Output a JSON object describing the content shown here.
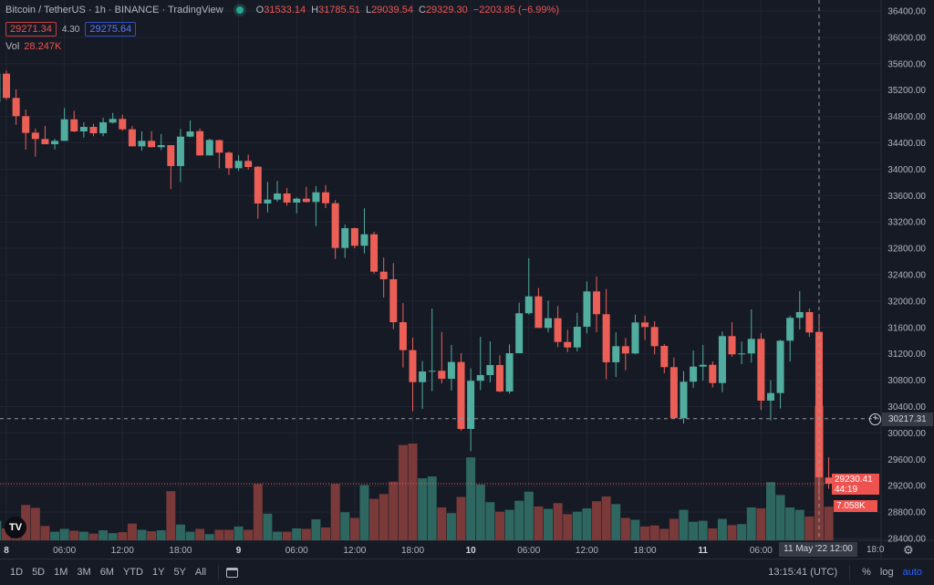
{
  "header": {
    "symbol": "Bitcoin / TetherUS · 1h · BINANCE · TradingView",
    "market_status": "open",
    "ohlc": {
      "o_label": "O",
      "o": "31533.14",
      "h_label": "H",
      "h": "31785.51",
      "l_label": "L",
      "l": "29039.54",
      "c_label": "C",
      "c": "29329.30",
      "change": "−2203.85 (−6.99%)"
    },
    "sell_price": "29271.34",
    "spread": "4.30",
    "buy_price": "29275.64",
    "vol_label": "Vol",
    "vol_value": "28.247K"
  },
  "colors": {
    "up": "#50ad9f",
    "down": "#ec5f57",
    "up_volume": "#2e6660",
    "down_volume": "#7a3a3a",
    "background": "#161a25",
    "accent": "#2962ff"
  },
  "chart_data": {
    "type": "candlestick",
    "interval": "1h",
    "fields": [
      "time",
      "open",
      "high",
      "low",
      "close",
      "volume_k"
    ],
    "candles": [
      [
        "2022-05-07 23:00",
        35020,
        35500,
        35000,
        35449,
        4.1
      ],
      [
        "2022-05-08 00:00",
        35449,
        35496,
        35053,
        35081,
        2.5
      ],
      [
        "2022-05-08 01:00",
        35081,
        35214,
        34674,
        34804,
        3.0
      ],
      [
        "2022-05-08 02:00",
        34804,
        34905,
        34296,
        34550,
        7.4
      ],
      [
        "2022-05-08 03:00",
        34555,
        34615,
        34190,
        34458,
        6.8
      ],
      [
        "2022-05-08 04:00",
        34458,
        34656,
        34379,
        34379,
        3.0
      ],
      [
        "2022-05-08 05:00",
        34379,
        34458,
        34300,
        34430,
        1.8
      ],
      [
        "2022-05-08 06:00",
        34430,
        34929,
        34430,
        34757,
        2.4
      ],
      [
        "2022-05-08 07:00",
        34757,
        34887,
        34563,
        34573,
        2.0
      ],
      [
        "2022-05-08 08:00",
        34573,
        34711,
        34480,
        34642,
        1.8
      ],
      [
        "2022-05-08 09:00",
        34642,
        34688,
        34500,
        34545,
        1.4
      ],
      [
        "2022-05-08 10:00",
        34545,
        34781,
        34500,
        34711,
        2.1
      ],
      [
        "2022-05-08 11:00",
        34707,
        34854,
        34693,
        34763,
        1.5
      ],
      [
        "2022-05-08 12:00",
        34763,
        34826,
        34583,
        34605,
        1.7
      ],
      [
        "2022-05-08 13:00",
        34605,
        34656,
        34347,
        34347,
        3.5
      ],
      [
        "2022-05-08 14:00",
        34347,
        34573,
        34282,
        34430,
        2.2
      ],
      [
        "2022-05-08 15:00",
        34430,
        34577,
        34334,
        34334,
        1.9
      ],
      [
        "2022-05-08 16:00",
        34334,
        34532,
        34292,
        34365,
        2.1
      ],
      [
        "2022-05-08 17:00",
        34365,
        34365,
        33697,
        34047,
        10.3
      ],
      [
        "2022-05-08 18:00",
        34047,
        34610,
        33808,
        34494,
        3.3
      ],
      [
        "2022-05-08 19:00",
        34494,
        34739,
        34484,
        34573,
        1.8
      ],
      [
        "2022-05-08 20:00",
        34577,
        34619,
        34209,
        34209,
        2.4
      ],
      [
        "2022-05-08 21:00",
        34209,
        34462,
        34209,
        34444,
        1.3
      ],
      [
        "2022-05-08 22:00",
        34440,
        34450,
        34015,
        34251,
        2.2
      ],
      [
        "2022-05-08 23:00",
        34251,
        34269,
        33913,
        34015,
        2.2
      ],
      [
        "2022-05-09 00:00",
        34015,
        34213,
        33974,
        34126,
        2.9
      ],
      [
        "2022-05-09 01:00",
        34126,
        34223,
        33996,
        34033,
        2.2
      ],
      [
        "2022-05-09 02:00",
        34037,
        34047,
        33249,
        33480,
        11.8
      ],
      [
        "2022-05-09 03:00",
        33480,
        33808,
        33345,
        33539,
        5.6
      ],
      [
        "2022-05-09 04:00",
        33539,
        33822,
        33507,
        33632,
        1.8
      ],
      [
        "2022-05-09 05:00",
        33632,
        33715,
        33448,
        33494,
        1.8
      ],
      [
        "2022-05-09 06:00",
        33494,
        33572,
        33332,
        33553,
        2.5
      ],
      [
        "2022-05-09 07:00",
        33553,
        33733,
        33494,
        33503,
        2.4
      ],
      [
        "2022-05-09 08:00",
        33503,
        33743,
        33138,
        33650,
        4.4
      ],
      [
        "2022-05-09 09:00",
        33650,
        33761,
        33410,
        33484,
        2.7
      ],
      [
        "2022-05-09 10:00",
        33484,
        33531,
        32640,
        32806,
        11.8
      ],
      [
        "2022-05-09 11:00",
        32806,
        33161,
        32654,
        33106,
        5.9
      ],
      [
        "2022-05-09 12:00",
        33106,
        33115,
        32802,
        32839,
        4.7
      ],
      [
        "2022-05-09 13:00",
        32839,
        33406,
        32723,
        33013,
        11.6
      ],
      [
        "2022-05-09 14:00",
        33013,
        33051,
        32414,
        32446,
        8.7
      ],
      [
        "2022-05-09 15:00",
        32446,
        32659,
        32054,
        32331,
        9.7
      ],
      [
        "2022-05-09 16:00",
        32331,
        32576,
        31574,
        31680,
        12.3
      ],
      [
        "2022-05-09 17:00",
        31680,
        31971,
        30993,
        31256,
        20.0
      ],
      [
        "2022-05-09 18:00",
        31256,
        31445,
        30328,
        30771,
        20.3
      ],
      [
        "2022-05-09 19:00",
        30771,
        31090,
        30366,
        30933,
        13.0
      ],
      [
        "2022-05-09 20:00",
        30933,
        31888,
        30633,
        30943,
        13.4
      ],
      [
        "2022-05-09 21:00",
        30943,
        31532,
        30753,
        30822,
        6.9
      ],
      [
        "2022-05-09 22:00",
        30822,
        31334,
        30643,
        31076,
        5.7
      ],
      [
        "2022-05-09 23:00",
        31076,
        31210,
        30033,
        30061,
        9.1
      ],
      [
        "2022-05-10 00:00",
        30061,
        30979,
        29725,
        30791,
        17.4
      ],
      [
        "2022-05-10 01:00",
        30791,
        31459,
        30652,
        30878,
        11.7
      ],
      [
        "2022-05-10 02:00",
        30878,
        31390,
        30767,
        31030,
        8.0
      ],
      [
        "2022-05-10 03:00",
        31030,
        31178,
        30619,
        30629,
        6.0
      ],
      [
        "2022-05-10 04:00",
        30629,
        31344,
        30597,
        31210,
        6.4
      ],
      [
        "2022-05-10 05:00",
        31210,
        31975,
        31210,
        31815,
        8.3
      ],
      [
        "2022-05-10 06:00",
        31815,
        32649,
        31795,
        32072,
        10.2
      ],
      [
        "2022-05-10 07:00",
        32072,
        32197,
        31593,
        31593,
        7.1
      ],
      [
        "2022-05-10 08:00",
        31593,
        32008,
        31528,
        31740,
        6.6
      ],
      [
        "2022-05-10 09:00",
        31740,
        31925,
        31303,
        31380,
        7.8
      ],
      [
        "2022-05-10 10:00",
        31380,
        31566,
        31224,
        31297,
        5.5
      ],
      [
        "2022-05-10 11:00",
        31297,
        31823,
        31238,
        31611,
        6.0
      ],
      [
        "2022-05-10 12:00",
        31611,
        32299,
        31510,
        32147,
        6.7
      ],
      [
        "2022-05-10 13:00",
        32147,
        32372,
        31528,
        31801,
        8.2
      ],
      [
        "2022-05-10 14:00",
        31801,
        32183,
        30813,
        31072,
        9.2
      ],
      [
        "2022-05-10 15:00",
        31072,
        31528,
        30850,
        31316,
        7.6
      ],
      [
        "2022-05-10 16:00",
        31316,
        31441,
        30951,
        31206,
        4.7
      ],
      [
        "2022-05-10 17:00",
        31206,
        31795,
        31192,
        31676,
        4.3
      ],
      [
        "2022-05-10 18:00",
        31676,
        31777,
        31408,
        31607,
        2.9
      ],
      [
        "2022-05-10 19:00",
        31607,
        31694,
        31192,
        31316,
        3.1
      ],
      [
        "2022-05-10 20:00",
        31320,
        31348,
        30905,
        30998,
        2.4
      ],
      [
        "2022-05-10 21:00",
        30998,
        31145,
        30223,
        30223,
        4.5
      ],
      [
        "2022-05-10 22:00",
        30223,
        30937,
        30144,
        30777,
        6.4
      ],
      [
        "2022-05-10 23:00",
        30777,
        31251,
        30684,
        31006,
        3.9
      ],
      [
        "2022-05-11 00:00",
        31006,
        31334,
        30795,
        31034,
        4.1
      ],
      [
        "2022-05-11 01:00",
        31034,
        31085,
        30688,
        30757,
        2.5
      ],
      [
        "2022-05-11 02:00",
        30757,
        31538,
        30619,
        31469,
        4.5
      ],
      [
        "2022-05-11 03:00",
        31469,
        31680,
        31155,
        31192,
        3.2
      ],
      [
        "2022-05-11 04:00",
        31192,
        31386,
        31044,
        31206,
        3.4
      ],
      [
        "2022-05-11 05:00",
        31206,
        31874,
        31068,
        31427,
        6.9
      ],
      [
        "2022-05-11 06:00",
        31427,
        31514,
        30348,
        30490,
        6.7
      ],
      [
        "2022-05-11 07:00",
        30490,
        30799,
        30190,
        30605,
        12.2
      ],
      [
        "2022-05-11 08:00",
        30605,
        31413,
        30370,
        31399,
        9.5
      ],
      [
        "2022-05-11 09:00",
        31399,
        31777,
        31081,
        31746,
        6.9
      ],
      [
        "2022-05-11 10:00",
        31746,
        32151,
        31570,
        31833,
        6.4
      ],
      [
        "2022-05-11 11:00",
        31833,
        31888,
        31459,
        31524,
        5.0
      ],
      [
        "2022-05-11 12:00",
        31533.14,
        31785.51,
        29039.54,
        29329.3,
        28.247
      ],
      [
        "2022-05-11 13:00",
        29324,
        29632,
        29152,
        29230.41,
        7.058
      ]
    ],
    "y_range": [
      28400,
      36400
    ],
    "y_ticks": [
      "36400.00",
      "36000.00",
      "35600.00",
      "35200.00",
      "34800.00",
      "34400.00",
      "34000.00",
      "33600.00",
      "33200.00",
      "32800.00",
      "32400.00",
      "32000.00",
      "31600.00",
      "31200.00",
      "30800.00",
      "30400.00",
      "30000.00",
      "29600.00",
      "29200.00",
      "28800.00",
      "28400.00"
    ],
    "x_ticks": [
      {
        "label": "8",
        "time": "2022-05-08 00:00",
        "bold": true
      },
      {
        "label": "06:00",
        "time": "2022-05-08 06:00"
      },
      {
        "label": "12:00",
        "time": "2022-05-08 12:00"
      },
      {
        "label": "18:00",
        "time": "2022-05-08 18:00"
      },
      {
        "label": "9",
        "time": "2022-05-09 00:00",
        "bold": true
      },
      {
        "label": "06:00",
        "time": "2022-05-09 06:00"
      },
      {
        "label": "12:00",
        "time": "2022-05-09 12:00"
      },
      {
        "label": "18:00",
        "time": "2022-05-09 18:00"
      },
      {
        "label": "10",
        "time": "2022-05-10 00:00",
        "bold": true
      },
      {
        "label": "06:00",
        "time": "2022-05-10 06:00"
      },
      {
        "label": "12:00",
        "time": "2022-05-10 12:00"
      },
      {
        "label": "18:00",
        "time": "2022-05-10 18:00"
      },
      {
        "label": "11",
        "time": "2022-05-11 00:00",
        "bold": true
      },
      {
        "label": "06:00",
        "time": "2022-05-11 06:00"
      }
    ],
    "x_tick_partial": "18:0",
    "grid": true,
    "crosshair": {
      "time": "2022-05-11 12:00",
      "time_label": "11 May '22  12:00",
      "price": 30217.31,
      "price_label": "30217.31"
    },
    "last_price": {
      "price": 29230.41,
      "label": "29230.41",
      "countdown": "44:19"
    },
    "last_volume_label": "7.058K"
  },
  "logo": "TV",
  "toolbar": {
    "ranges": [
      "1D",
      "5D",
      "1M",
      "3M",
      "6M",
      "YTD",
      "1Y",
      "5Y",
      "All"
    ],
    "clock": "13:15:41 (UTC)",
    "percent": "%",
    "log": "log",
    "auto": "auto"
  }
}
